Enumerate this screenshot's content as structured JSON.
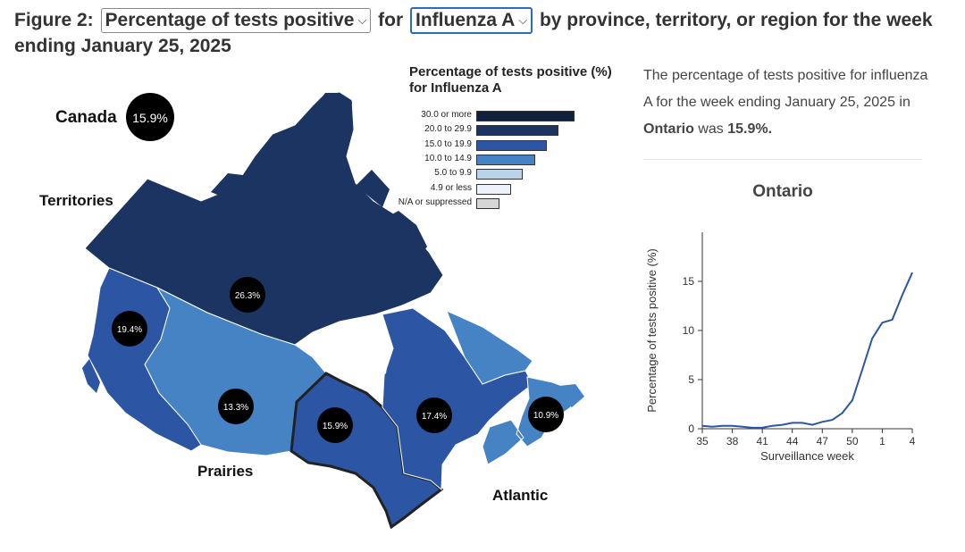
{
  "heading": {
    "prefix": "Figure 2:",
    "measure_select": "Percentage of tests positive",
    "connector": "for",
    "virus_select": "Influenza A",
    "suffix": "by province, territory, or region for the week ending January 25, 2025"
  },
  "map": {
    "canada": {
      "label": "Canada",
      "value": "15.9%"
    },
    "regions": [
      {
        "id": "territories",
        "name": "Territories",
        "value": "26.3%",
        "color": "#1b3461"
      },
      {
        "id": "british-columbia",
        "name": "",
        "value": "19.4%",
        "color": "#2c55a3"
      },
      {
        "id": "prairies",
        "name": "Prairies",
        "value": "13.3%",
        "color": "#4683c5"
      },
      {
        "id": "ontario",
        "name": "",
        "value": "15.9%",
        "color": "#2c55a3"
      },
      {
        "id": "quebec",
        "name": "",
        "value": "17.4%",
        "color": "#2c55a3"
      },
      {
        "id": "atlantic",
        "name": "Atlantic",
        "value": "10.9%",
        "color": "#4683c5"
      }
    ]
  },
  "legend": {
    "title": "Percentage of tests positive (%) for Influenza A",
    "items": [
      {
        "label": "30.0 or more",
        "color": "#0f1f3d",
        "length": 108
      },
      {
        "label": "20.0 to 29.9",
        "color": "#1b3461",
        "length": 90
      },
      {
        "label": "15.0 to 19.9",
        "color": "#2c55a3",
        "length": 77
      },
      {
        "label": "10.0 to 14.9",
        "color": "#4683c5",
        "length": 64
      },
      {
        "label": "5.0 to 9.9",
        "color": "#b9d3ea",
        "length": 50
      },
      {
        "label": "4.9 or less",
        "color": "#eef3fb",
        "length": 37
      },
      {
        "label": "N/A or suppressed",
        "color": "#d6d6d6",
        "length": 24
      }
    ]
  },
  "description": {
    "before": "The percentage of tests positive for influenza A for the week ending January 25, 2025 in",
    "region": "Ontario",
    "middle": "was",
    "value": "15.9%."
  },
  "chart_data": {
    "type": "line",
    "title": "Ontario",
    "xlabel": "Surveillance week",
    "ylabel": "Percentage of tests positive (%)",
    "x": [
      "35",
      "36",
      "37",
      "38",
      "39",
      "40",
      "41",
      "42",
      "43",
      "44",
      "45",
      "46",
      "47",
      "48",
      "49",
      "50",
      "51",
      "52",
      "1",
      "2",
      "3",
      "4"
    ],
    "xticks": [
      "35",
      "38",
      "41",
      "44",
      "47",
      "50",
      "1",
      "4"
    ],
    "yticks": [
      0,
      5,
      10,
      15
    ],
    "ylim": [
      0,
      20
    ],
    "series": [
      {
        "name": "",
        "color": "#2c55a3",
        "values": [
          0.3,
          0.2,
          0.3,
          0.3,
          0.2,
          0.1,
          0.1,
          0.3,
          0.4,
          0.6,
          0.6,
          0.4,
          0.7,
          0.9,
          1.6,
          2.9,
          6.0,
          9.2,
          10.8,
          11.1,
          13.6,
          15.9
        ]
      }
    ]
  }
}
